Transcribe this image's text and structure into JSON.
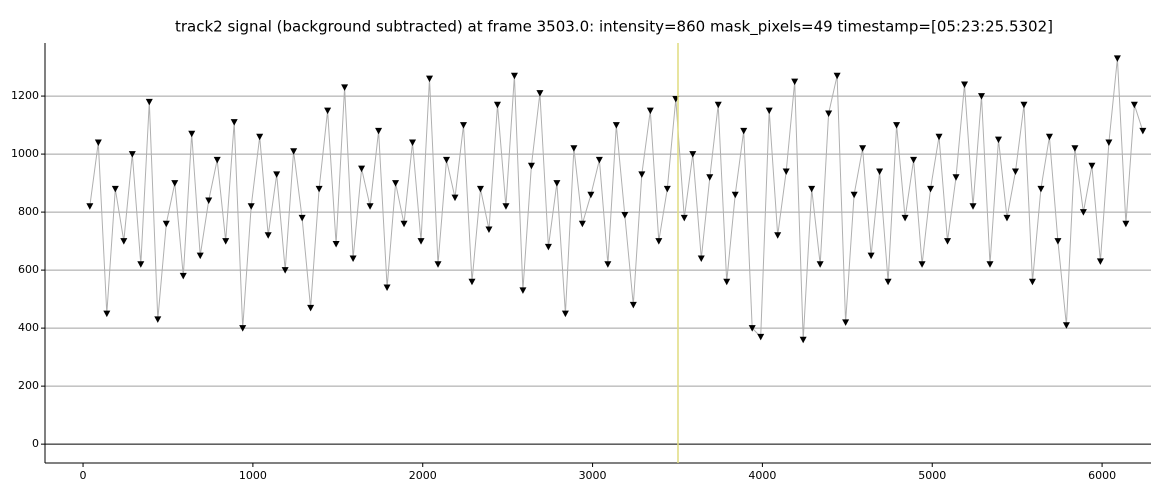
{
  "chart_data": {
    "type": "line",
    "title": "track2 signal (background subtracted) at frame 3503.0: intensity=860 mask_pixels=49 timestamp=[05:23:25.5302]",
    "xlim": [
      -224,
      6288
    ],
    "ylim": [
      -65,
      1383
    ],
    "xticks": [
      0,
      1000,
      2000,
      3000,
      4000,
      5000,
      6000
    ],
    "yticks": [
      0,
      200,
      400,
      600,
      800,
      1000,
      1200
    ],
    "grid": true,
    "marker_frame": 3503,
    "marker_color": "#e0dc80",
    "line_color": "#b0b0b0",
    "point_color": "#000000",
    "series": [
      {
        "name": "track2",
        "x": [
          40,
          90,
          140,
          190,
          240,
          290,
          340,
          390,
          440,
          490,
          540,
          590,
          640,
          690,
          740,
          790,
          840,
          890,
          940,
          990,
          1040,
          1090,
          1140,
          1190,
          1240,
          1290,
          1340,
          1390,
          1440,
          1490,
          1540,
          1590,
          1640,
          1690,
          1740,
          1790,
          1840,
          1890,
          1940,
          1990,
          2040,
          2090,
          2140,
          2190,
          2240,
          2290,
          2340,
          2390,
          2440,
          2490,
          2540,
          2590,
          2640,
          2690,
          2740,
          2790,
          2840,
          2890,
          2940,
          2990,
          3040,
          3090,
          3140,
          3190,
          3240,
          3290,
          3340,
          3390,
          3440,
          3490,
          3540,
          3590,
          3640,
          3690,
          3740,
          3790,
          3840,
          3890,
          3940,
          3990,
          4040,
          4090,
          4140,
          4190,
          4240,
          4290,
          4340,
          4390,
          4440,
          4490,
          4540,
          4590,
          4640,
          4690,
          4740,
          4790,
          4840,
          4890,
          4940,
          4990,
          5040,
          5090,
          5140,
          5190,
          5240,
          5290,
          5340,
          5390,
          5440,
          5490,
          5540,
          5590,
          5640,
          5690,
          5740,
          5790,
          5840,
          5890,
          5940,
          5990,
          6040,
          6090,
          6140,
          6190,
          6240
        ],
        "values": [
          820,
          1040,
          450,
          880,
          700,
          1000,
          620,
          1180,
          430,
          760,
          900,
          580,
          1070,
          650,
          840,
          980,
          700,
          1110,
          400,
          820,
          1060,
          720,
          930,
          600,
          1010,
          780,
          470,
          880,
          1150,
          690,
          1230,
          640,
          950,
          820,
          1080,
          540,
          900,
          760,
          1040,
          700,
          1260,
          620,
          980,
          850,
          1100,
          560,
          880,
          740,
          1170,
          820,
          1270,
          530,
          960,
          1210,
          680,
          900,
          450,
          1020,
          760,
          860,
          980,
          620,
          1100,
          790,
          480,
          930,
          1150,
          700,
          880,
          1190,
          780,
          1000,
          640,
          920,
          1170,
          560,
          860,
          1080,
          400,
          370,
          1150,
          720,
          940,
          1250,
          360,
          880,
          620,
          1140,
          1270,
          420,
          860,
          1020,
          650,
          940,
          560,
          1100,
          780,
          980,
          620,
          880,
          1060,
          700,
          920,
          1240,
          820,
          1200,
          620,
          1050,
          780,
          940,
          1170,
          560,
          880,
          1060,
          700,
          410,
          1020,
          800,
          960,
          630,
          1040,
          1330,
          760,
          1170,
          1080
        ]
      }
    ]
  }
}
